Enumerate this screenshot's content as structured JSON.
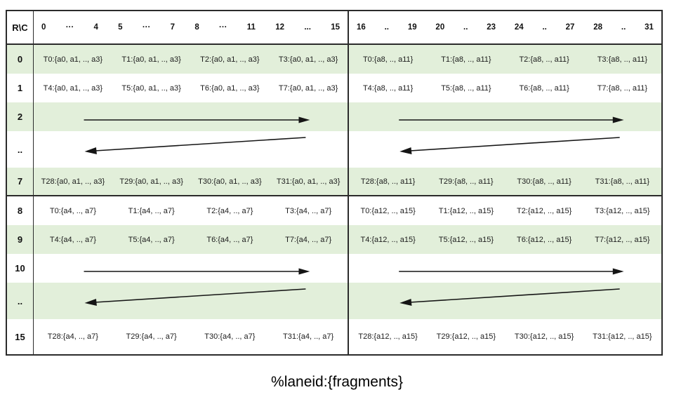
{
  "figure": {
    "caption": "%laneid:{fragments}",
    "colors": {
      "band_green": "#e2efda",
      "border": "#2b2b2b",
      "arrow": "#151515"
    }
  },
  "table": {
    "corner_label": "R\\C",
    "col_headers": {
      "left": [
        "0",
        "···",
        "4",
        "5",
        "···",
        "7",
        "8",
        "···",
        "11",
        "12",
        "...",
        "15"
      ],
      "right": [
        "16",
        "..",
        "19",
        "20",
        "..",
        "23",
        "24",
        "..",
        "27",
        "28",
        "..",
        "31"
      ]
    },
    "rows": [
      {
        "label": "0",
        "shaded": true,
        "left": [
          "T0:{a0, a1, .., a3}",
          "T1:{a0, a1, .., a3}",
          "T2:{a0, a1, .., a3}",
          "T3:{a0, a1, .., a3}"
        ],
        "right": [
          "T0:{a8, .., a11}",
          "T1:{a8, .., a11}",
          "T2:{a8, .., a11}",
          "T3:{a8, .., a11}"
        ]
      },
      {
        "label": "1",
        "shaded": false,
        "left": [
          "T4:{a0, a1, .., a3}",
          "T5:{a0, a1, .., a3}",
          "T6:{a0, a1, .., a3}",
          "T7:{a0, a1, .., a3}"
        ],
        "right": [
          "T4:{a8, .., a11}",
          "T5:{a8, .., a11}",
          "T6:{a8, .., a11}",
          "T7:{a8, .., a11}"
        ]
      },
      {
        "label": "2",
        "shaded": true,
        "arrow": "right"
      },
      {
        "label": "..",
        "shaded": false,
        "arrow": "left"
      },
      {
        "label": "7",
        "shaded": true,
        "section_end": true,
        "left": [
          "T28:{a0, a1, .., a3}",
          "T29:{a0, a1, .., a3}",
          "T30:{a0, a1, .., a3}",
          "T31:{a0, a1, .., a3}"
        ],
        "right": [
          "T28:{a8, .., a11}",
          "T29:{a8, .., a11}",
          "T30:{a8, .., a11}",
          "T31:{a8, .., a11}"
        ]
      },
      {
        "label": "8",
        "shaded": false,
        "left": [
          "T0:{a4, .., a7}",
          "T1:{a4, .., a7}",
          "T2:{a4, .., a7}",
          "T3:{a4, .., a7}"
        ],
        "right": [
          "T0:{a12, .., a15}",
          "T1:{a12, .., a15}",
          "T2:{a12, .., a15}",
          "T3:{a12, .., a15}"
        ]
      },
      {
        "label": "9",
        "shaded": true,
        "left": [
          "T4:{a4, .., a7}",
          "T5:{a4, .., a7}",
          "T6:{a4, .., a7}",
          "T7:{a4, .., a7}"
        ],
        "right": [
          "T4:{a12, .., a15}",
          "T5:{a12, .., a15}",
          "T6:{a12, .., a15}",
          "T7:{a12, .., a15}"
        ]
      },
      {
        "label": "10",
        "shaded": false,
        "arrow": "right"
      },
      {
        "label": "..",
        "shaded": true,
        "arrow": "left"
      },
      {
        "label": "15",
        "shaded": false,
        "left": [
          "T28:{a4, .., a7}",
          "T29:{a4, .., a7}",
          "T30:{a4, .., a7}",
          "T31:{a4, .., a7}"
        ],
        "right": [
          "T28:{a12, .., a15}",
          "T29:{a12, .., a15}",
          "T30:{a12, .., a15}",
          "T31:{a12, .., a15}"
        ]
      }
    ]
  }
}
